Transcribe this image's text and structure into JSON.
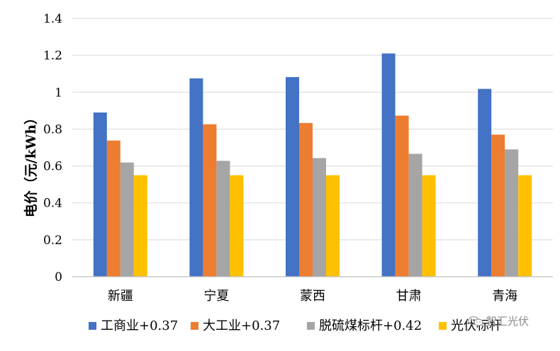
{
  "chart_data": {
    "type": "bar",
    "categories": [
      "新疆",
      "宁夏",
      "蒙西",
      "甘肃",
      "青海"
    ],
    "series": [
      {
        "name": "工商业+0.37",
        "color": "#4472C4",
        "values": [
          0.89,
          1.075,
          1.082,
          1.21,
          1.018
        ]
      },
      {
        "name": "大工业+0.37",
        "color": "#ED7D31",
        "values": [
          0.738,
          0.826,
          0.833,
          0.873,
          0.77
        ]
      },
      {
        "name": "脱硫煤标杆+0.42",
        "color": "#A5A5A5",
        "values": [
          0.619,
          0.628,
          0.643,
          0.666,
          0.69
        ]
      },
      {
        "name": "光伏标杆",
        "color": "#FFC000",
        "values": [
          0.55,
          0.55,
          0.55,
          0.55,
          0.55
        ]
      }
    ],
    "xlabel": "",
    "ylabel": "电价（元/kWh）",
    "ylim": [
      0,
      1.4
    ],
    "yticks": [
      "0",
      "0.2",
      "0.4",
      "0.6",
      "0.8",
      "1",
      "1.2",
      "1.4"
    ],
    "grid": true,
    "legend_position": "bottom"
  },
  "watermark": {
    "text": "智汇光伏",
    "icon": "wechat-icon"
  }
}
